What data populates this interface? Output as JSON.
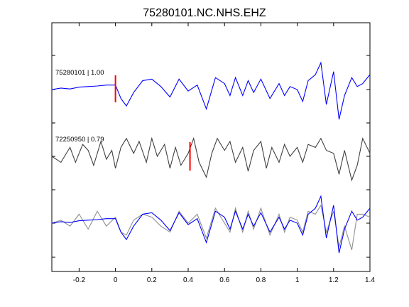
{
  "chart_data": {
    "type": "line",
    "title": "75280101.NC.NHS.EHZ",
    "xlabel": "",
    "ylabel": "",
    "xlim": [
      -0.35,
      1.4
    ],
    "x_ticks": [
      "-0.2",
      "0",
      "0.2",
      "0.4",
      "0.6",
      "0.8",
      "1",
      "1.2",
      "1.4"
    ],
    "x_tick_values": [
      -0.2,
      0,
      0.2,
      0.4,
      0.6,
      0.8,
      1.0,
      1.2,
      1.4
    ],
    "grid": false,
    "colors": {
      "template": "#0000ff",
      "match": "#404040",
      "match_overlay": "#909090",
      "pick": "#ff0000"
    },
    "traces": [
      {
        "name": "75280101 | 1.00",
        "label": "75280101 | 1.00",
        "pick_time": 0.0,
        "x": [
          -0.35,
          -0.3,
          -0.25,
          -0.2,
          -0.15,
          -0.1,
          -0.05,
          0,
          0.03,
          0.06,
          0.1,
          0.15,
          0.2,
          0.25,
          0.3,
          0.35,
          0.4,
          0.45,
          0.5,
          0.55,
          0.6,
          0.63,
          0.66,
          0.7,
          0.73,
          0.76,
          0.8,
          0.85,
          0.9,
          0.93,
          0.96,
          1,
          1.03,
          1.06,
          1.1,
          1.13,
          1.16,
          1.2,
          1.23,
          1.26,
          1.3,
          1.33,
          1.36,
          1.4
        ],
        "y": [
          0,
          0.05,
          0.02,
          0.08,
          0.1,
          0.12,
          0.15,
          0.15,
          -0.3,
          -0.55,
          -0.1,
          0.3,
          0.35,
          0.1,
          -0.25,
          0.35,
          -0.05,
          0.15,
          -0.65,
          0.4,
          0.2,
          -0.2,
          0.4,
          -0.2,
          0.3,
          -0.1,
          0.35,
          -0.3,
          0.2,
          -0.2,
          0.1,
          0,
          -0.4,
          0.3,
          0.5,
          0.9,
          -0.5,
          0.6,
          -1.0,
          -0.2,
          0.4,
          0.1,
          0.2,
          0.5
        ]
      },
      {
        "name": "72250950 | 0.79",
        "label": "72250950 | 0.79",
        "pick_time": 0.41,
        "x": [
          -0.35,
          -0.3,
          -0.25,
          -0.22,
          -0.18,
          -0.15,
          -0.12,
          -0.08,
          -0.05,
          -0.02,
          0,
          0.03,
          0.06,
          0.1,
          0.13,
          0.17,
          0.2,
          0.23,
          0.27,
          0.3,
          0.33,
          0.36,
          0.4,
          0.43,
          0.46,
          0.5,
          0.53,
          0.56,
          0.6,
          0.63,
          0.66,
          0.7,
          0.73,
          0.76,
          0.8,
          0.83,
          0.86,
          0.9,
          0.93,
          0.96,
          1,
          1.03,
          1.06,
          1.1,
          1.13,
          1.16,
          1.2,
          1.23,
          1.26,
          1.3,
          1.33,
          1.36,
          1.4
        ],
        "y": [
          0,
          -0.2,
          0.3,
          -0.2,
          0.4,
          0.2,
          -0.3,
          0.5,
          -0.1,
          0.2,
          -0.4,
          0.3,
          0.6,
          0.1,
          0.5,
          -0.2,
          0.6,
          0.0,
          0.4,
          -0.4,
          0.3,
          -0.3,
          0.1,
          0.6,
          -0.2,
          -0.7,
          0.1,
          0.6,
          0.2,
          0.5,
          -0.2,
          0.3,
          -0.5,
          0.2,
          0.5,
          -0.4,
          0.3,
          -0.2,
          0.4,
          0.0,
          0.3,
          -0.2,
          0.4,
          0.3,
          0.6,
          0.2,
          0.1,
          -0.6,
          0.2,
          -0.8,
          -0.3,
          0.6,
          0.1
        ]
      },
      {
        "name": "overlay",
        "label": "",
        "template_x": [
          -0.35,
          -0.3,
          -0.25,
          -0.2,
          -0.15,
          -0.1,
          -0.05,
          0,
          0.03,
          0.06,
          0.1,
          0.15,
          0.2,
          0.25,
          0.3,
          0.35,
          0.4,
          0.45,
          0.5,
          0.55,
          0.6,
          0.63,
          0.66,
          0.7,
          0.73,
          0.76,
          0.8,
          0.85,
          0.9,
          0.93,
          0.96,
          1,
          1.03,
          1.06,
          1.1,
          1.13,
          1.16,
          1.2,
          1.23,
          1.26,
          1.3,
          1.33,
          1.36,
          1.4
        ],
        "template_y": [
          0,
          0.05,
          0.02,
          0.08,
          0.1,
          0.12,
          0.15,
          0.15,
          -0.3,
          -0.55,
          -0.1,
          0.3,
          0.35,
          0.1,
          -0.25,
          0.35,
          -0.05,
          0.15,
          -0.65,
          0.4,
          0.2,
          -0.2,
          0.4,
          -0.2,
          0.3,
          -0.1,
          0.35,
          -0.3,
          0.2,
          -0.2,
          0.1,
          0,
          -0.4,
          0.3,
          0.5,
          0.9,
          -0.5,
          0.6,
          -1.0,
          -0.2,
          0.4,
          0.1,
          0.2,
          0.5
        ],
        "match_x": [
          -0.35,
          -0.3,
          -0.25,
          -0.2,
          -0.15,
          -0.1,
          -0.05,
          0,
          0.03,
          0.06,
          0.1,
          0.15,
          0.2,
          0.25,
          0.3,
          0.35,
          0.4,
          0.45,
          0.5,
          0.55,
          0.6,
          0.63,
          0.66,
          0.7,
          0.73,
          0.76,
          0.8,
          0.85,
          0.9,
          0.93,
          0.96,
          1,
          1.03,
          1.06,
          1.1,
          1.13,
          1.16,
          1.2,
          1.23,
          1.26,
          1.3,
          1.33,
          1.36,
          1.4
        ],
        "match_y": [
          0,
          0.1,
          -0.1,
          0.3,
          -0.2,
          0.4,
          -0.1,
          0.2,
          -0.3,
          -0.4,
          0.1,
          0.3,
          0.2,
          -0.1,
          -0.3,
          0.4,
          0.0,
          0.3,
          -0.5,
          0.5,
          0.0,
          -0.3,
          0.5,
          -0.3,
          0.4,
          -0.2,
          0.5,
          -0.4,
          0.3,
          -0.3,
          0.2,
          0.1,
          -0.3,
          0.4,
          0.3,
          0.6,
          -0.3,
          0.4,
          -0.8,
          -0.1,
          -0.9,
          0.3,
          0.3,
          0.2
        ]
      }
    ]
  }
}
